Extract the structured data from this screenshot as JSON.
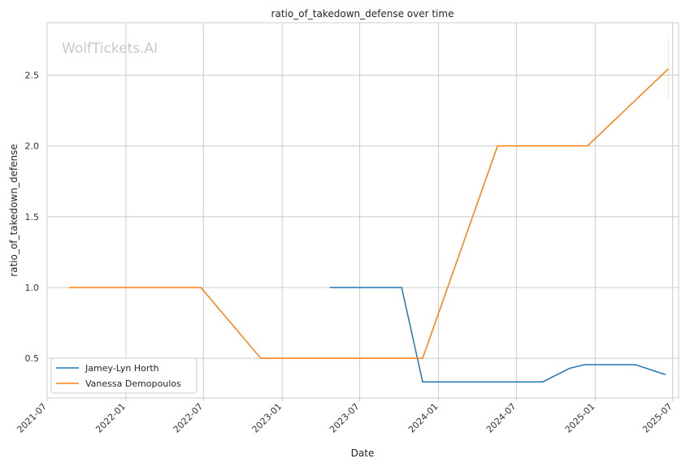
{
  "chart_data": {
    "type": "line",
    "title": "ratio_of_takedown_defense over time",
    "xlabel": "Date",
    "ylabel": "ratio_of_takedown_defense",
    "watermark": "WolfTickets.AI",
    "xlim": [
      "2021-07-01",
      "2025-07-15"
    ],
    "ylim": [
      0.22,
      2.87
    ],
    "x_ticks": [
      "2021-07-01",
      "2022-01-01",
      "2022-07-01",
      "2023-01-01",
      "2023-07-01",
      "2024-01-01",
      "2024-07-01",
      "2025-01-01",
      "2025-07-01"
    ],
    "x_tick_labels": [
      "2021-07",
      "2022-01",
      "2022-07",
      "2023-01",
      "2023-07",
      "2024-01",
      "2024-07",
      "2025-01",
      "2025-07"
    ],
    "y_ticks": [
      0.5,
      1.0,
      1.5,
      2.0,
      2.5
    ],
    "y_tick_labels": [
      "0.5",
      "1.0",
      "1.5",
      "2.0",
      "2.5"
    ],
    "grid": true,
    "legend_position": "lower-left",
    "series": [
      {
        "name": "Jamey-Lyn Horth",
        "color": "#1f77b4",
        "x": [
          "2023-04-22",
          "2023-10-07",
          "2023-11-25",
          "2024-08-31",
          "2024-11-02",
          "2024-12-07",
          "2025-04-05",
          "2025-06-14"
        ],
        "y": [
          1.0,
          1.0,
          0.333,
          0.333,
          0.429,
          0.455,
          0.455,
          0.385
        ]
      },
      {
        "name": "Vanessa Demopoulos",
        "color": "#ff7f0e",
        "x": [
          "2021-08-21",
          "2022-06-25",
          "2022-11-12",
          "2023-11-25",
          "2024-05-18",
          "2024-12-14",
          "2025-06-21"
        ],
        "y": [
          1.0,
          1.0,
          0.5,
          0.5,
          2.0,
          2.0,
          2.545
        ]
      }
    ],
    "error_bars": [
      {
        "series": "Vanessa Demopoulos",
        "x": "2025-06-21",
        "low": 2.33,
        "high": 2.76
      }
    ]
  }
}
